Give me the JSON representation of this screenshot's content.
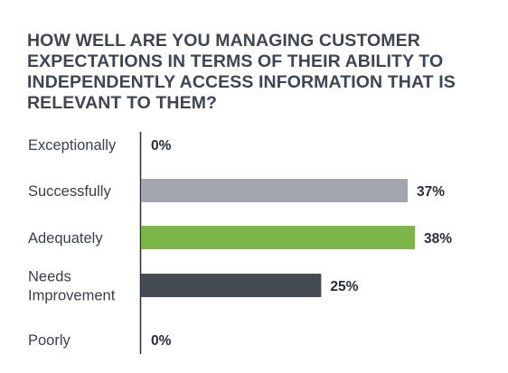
{
  "chart_data": {
    "type": "bar",
    "orientation": "horizontal",
    "title": "HOW WELL ARE YOU MANAGING CUSTOMER EXPECTATIONS IN TERMS OF THEIR ABILITY TO INDEPENDENTLY ACCESS INFORMATION THAT IS RELEVANT TO THEM?",
    "xlabel": "",
    "ylabel": "",
    "categories": [
      [
        "Exceptionally"
      ],
      [
        "Successfully"
      ],
      [
        "Adequately"
      ],
      [
        "Needs",
        "Improvement"
      ],
      [
        "Poorly"
      ]
    ],
    "values": [
      0,
      37,
      38,
      25,
      0
    ],
    "value_labels": [
      "0%",
      "37%",
      "38%",
      "25%",
      "0%"
    ],
    "bar_colors": [
      "#a3a7ad",
      "#a3a7ad",
      "#7ab648",
      "#454b53",
      "#a3a7ad"
    ],
    "xlim": [
      0,
      38
    ],
    "grid": false,
    "legend": "none"
  }
}
